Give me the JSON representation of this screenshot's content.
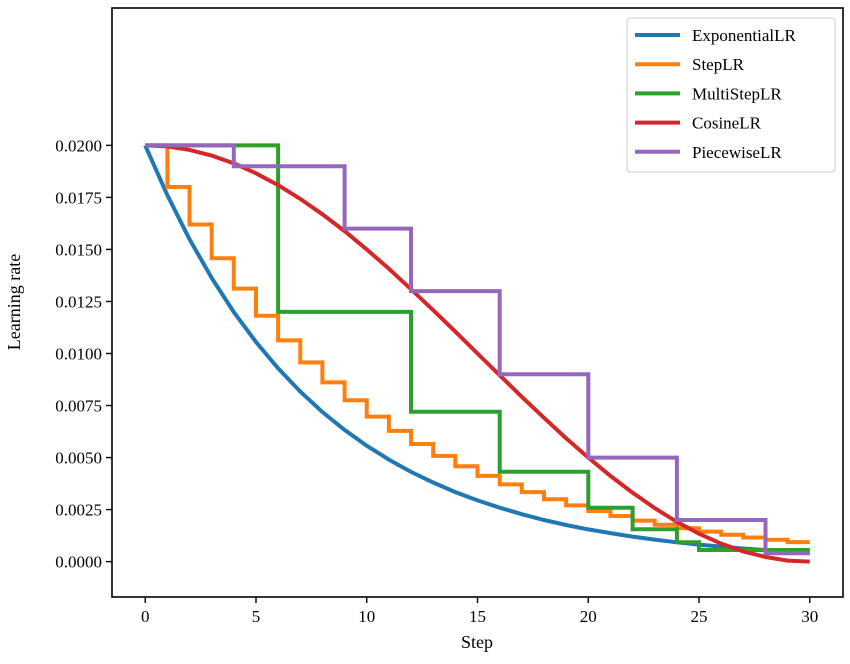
{
  "chart_data": {
    "type": "line",
    "title": "",
    "xlabel": "Step",
    "ylabel": "Learning rate",
    "xlim": [
      -1.5,
      31.5
    ],
    "ylim": [
      -0.0017,
      0.0266
    ],
    "grid": false,
    "legend_position": "top-right",
    "x_ticks": [
      0,
      5,
      10,
      15,
      20,
      25,
      30
    ],
    "x_tick_labels": [
      "0",
      "5",
      "10",
      "15",
      "20",
      "25",
      "30"
    ],
    "y_ticks": [
      0,
      0.0025,
      0.005,
      0.0075,
      0.01,
      0.0125,
      0.015,
      0.0175,
      0.02
    ],
    "y_tick_labels": [
      "0.0000",
      "0.0025",
      "0.0050",
      "0.0075",
      "0.0100",
      "0.0125",
      "0.0150",
      "0.0175",
      "0.0200"
    ],
    "series": [
      {
        "name": "ExponentialLR",
        "color": "#1f77b4",
        "kind": "line",
        "x": [
          0,
          1,
          2,
          3,
          4,
          5,
          6,
          7,
          8,
          9,
          10,
          11,
          12,
          13,
          14,
          15,
          16,
          17,
          18,
          19,
          20,
          21,
          22,
          23,
          24,
          25,
          26,
          27,
          28,
          29,
          30
        ],
        "y": [
          0.02,
          0.0176,
          0.01549,
          0.01363,
          0.01199,
          0.01055,
          0.00929,
          0.00817,
          0.00719,
          0.00633,
          0.00557,
          0.0049,
          0.00431,
          0.0038,
          0.00334,
          0.00294,
          0.00259,
          0.00228,
          0.002,
          0.00176,
          0.00155,
          0.00137,
          0.0012,
          0.00106,
          0.00093,
          0.00082,
          0.00072,
          0.00063,
          0.00056,
          0.00049,
          0.00043
        ]
      },
      {
        "name": "StepLR",
        "color": "#ff7f0e",
        "kind": "step",
        "edges": [
          0,
          1,
          2,
          3,
          4,
          5,
          6,
          7,
          8,
          9,
          10,
          11,
          12,
          13,
          14,
          15,
          16,
          17,
          18,
          19,
          20,
          21,
          22,
          23,
          24,
          25,
          26,
          27,
          28,
          29,
          30
        ],
        "levels": [
          0.02,
          0.018,
          0.0162,
          0.01458,
          0.01312,
          0.01181,
          0.01063,
          0.00957,
          0.00861,
          0.00775,
          0.00697,
          0.00628,
          0.00565,
          0.00508,
          0.00458,
          0.00412,
          0.00371,
          0.00334,
          0.003,
          0.0027,
          0.00243,
          0.00219,
          0.00197,
          0.00177,
          0.0016,
          0.00144,
          0.00129,
          0.00116,
          0.00105,
          0.00094
        ]
      },
      {
        "name": "MultiStepLR",
        "color": "#2ca02c",
        "kind": "step",
        "edges": [
          0,
          6,
          12,
          16,
          20,
          22,
          24,
          25,
          30
        ],
        "levels": [
          0.02,
          0.012,
          0.0072,
          0.00432,
          0.00259,
          0.00156,
          0.00093,
          0.00056
        ]
      },
      {
        "name": "CosineLR",
        "color": "#d62728",
        "kind": "line",
        "x": [
          0,
          1,
          2,
          3,
          4,
          5,
          6,
          7,
          8,
          9,
          10,
          11,
          12,
          13,
          14,
          15,
          16,
          17,
          18,
          19,
          20,
          21,
          22,
          23,
          24,
          25,
          26,
          27,
          28,
          29,
          30
        ],
        "y": [
          0.02,
          0.01995,
          0.01978,
          0.01951,
          0.01914,
          0.01866,
          0.01809,
          0.01743,
          0.01669,
          0.01588,
          0.015,
          0.01407,
          0.01309,
          0.01208,
          0.01105,
          0.01,
          0.00895,
          0.00792,
          0.00691,
          0.00593,
          0.005,
          0.00412,
          0.00331,
          0.00257,
          0.00191,
          0.00134,
          0.00086,
          0.00049,
          0.00022,
          5e-05,
          0
        ]
      },
      {
        "name": "PiecewiseLR",
        "color": "#9467bd",
        "kind": "step",
        "edges": [
          0,
          4,
          9,
          12,
          16,
          20,
          24,
          28,
          30
        ],
        "levels": [
          0.02,
          0.019,
          0.016,
          0.013,
          0.009,
          0.005,
          0.002,
          0.0004
        ]
      }
    ]
  }
}
